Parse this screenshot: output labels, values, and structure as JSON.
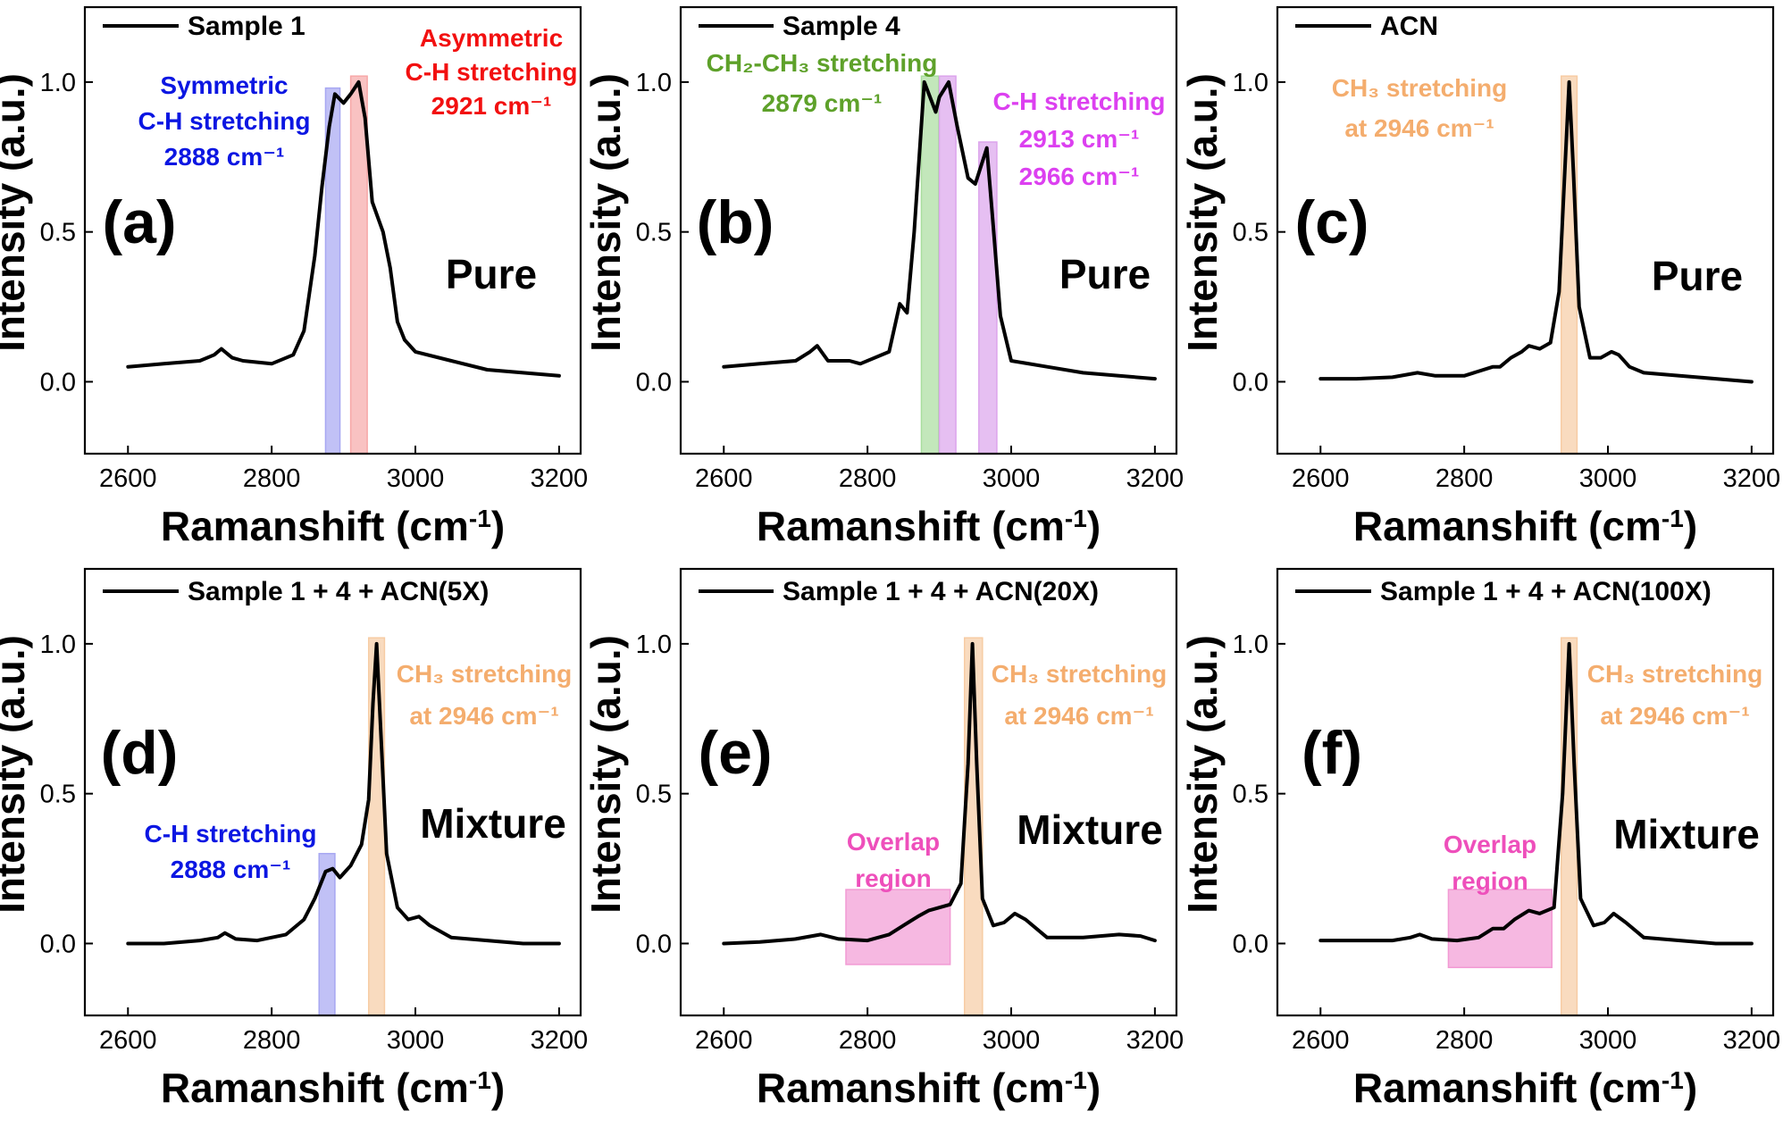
{
  "chart_data": [
    {
      "type": "line",
      "panel": "(a)",
      "legend": "Sample 1",
      "state_label": "Pure",
      "xlabel": "Ramanshift",
      "xunit": "cm",
      "xunit_exp": "-1",
      "ylabel": "Intensity (a.u.)",
      "xlim": [
        2540,
        3230
      ],
      "ylim": [
        -0.24,
        1.25
      ],
      "xticks": [
        "2600",
        "2800",
        "3000",
        "3200"
      ],
      "yticks": [
        "0.0",
        "0.5",
        "1.0"
      ],
      "x": [
        2600,
        2650,
        2700,
        2720,
        2730,
        2745,
        2760,
        2800,
        2830,
        2845,
        2860,
        2870,
        2880,
        2888,
        2900,
        2910,
        2921,
        2930,
        2940,
        2955,
        2965,
        2975,
        2985,
        3000,
        3050,
        3100,
        3150,
        3200
      ],
      "y": [
        0.05,
        0.06,
        0.07,
        0.09,
        0.11,
        0.08,
        0.07,
        0.06,
        0.09,
        0.17,
        0.42,
        0.65,
        0.85,
        0.96,
        0.93,
        0.96,
        1.0,
        0.88,
        0.6,
        0.5,
        0.38,
        0.2,
        0.14,
        0.1,
        0.07,
        0.04,
        0.03,
        0.02
      ],
      "bands": [
        {
          "x0": 2875,
          "x1": 2895,
          "y1": 0.98,
          "color": "#a7a7f2"
        },
        {
          "x0": 2910,
          "x1": 2933,
          "y1": 1.02,
          "color": "#f7a8a8"
        }
      ],
      "annotations": [
        {
          "lines": [
            "Symmetric",
            "C-H stretching",
            "2888 cm⁻¹"
          ],
          "color": "#0b16e2"
        },
        {
          "lines": [
            "Asymmetric",
            "C-H stretching",
            "2921 cm⁻¹"
          ],
          "color": "#f21010"
        }
      ]
    },
    {
      "type": "line",
      "panel": "(b)",
      "legend": "Sample 4",
      "state_label": "Pure",
      "xlabel": "Ramanshift",
      "xunit": "cm",
      "xunit_exp": "-1",
      "ylabel": "Intensity (a.u.)",
      "xlim": [
        2540,
        3230
      ],
      "ylim": [
        -0.24,
        1.25
      ],
      "xticks": [
        "2600",
        "2800",
        "3000",
        "3200"
      ],
      "yticks": [
        "0.0",
        "0.5",
        "1.0"
      ],
      "x": [
        2600,
        2650,
        2700,
        2720,
        2730,
        2745,
        2760,
        2775,
        2790,
        2830,
        2845,
        2855,
        2865,
        2879,
        2895,
        2900,
        2913,
        2925,
        2940,
        2950,
        2966,
        2975,
        2985,
        3000,
        3050,
        3100,
        3150,
        3200
      ],
      "y": [
        0.05,
        0.06,
        0.07,
        0.1,
        0.12,
        0.07,
        0.07,
        0.07,
        0.06,
        0.1,
        0.26,
        0.23,
        0.5,
        1.0,
        0.9,
        0.95,
        1.0,
        0.85,
        0.68,
        0.66,
        0.78,
        0.52,
        0.22,
        0.07,
        0.05,
        0.03,
        0.02,
        0.01
      ],
      "bands": [
        {
          "x0": 2875,
          "x1": 2899,
          "y1": 1.02,
          "color": "#a9dd9e"
        },
        {
          "x0": 2900,
          "x1": 2923,
          "y1": 1.02,
          "color": "#dca4ec"
        },
        {
          "x0": 2955,
          "x1": 2980,
          "y1": 0.8,
          "color": "#dca4ec"
        }
      ],
      "annotations": [
        {
          "lines": [
            "CH₂-CH₃ stretching",
            "2879 cm⁻¹"
          ],
          "color": "#5ea12a"
        },
        {
          "lines": [
            "C-H stretching",
            "2913 cm⁻¹",
            "2966 cm⁻¹"
          ],
          "color": "#dc40f0"
        }
      ]
    },
    {
      "type": "line",
      "panel": "(c)",
      "legend": "ACN",
      "state_label": "Pure",
      "xlabel": "Ramanshift",
      "xunit": "cm",
      "xunit_exp": "-1",
      "ylabel": "Intensity (a.u.)",
      "xlim": [
        2540,
        3230
      ],
      "ylim": [
        -0.24,
        1.25
      ],
      "xticks": [
        "2600",
        "2800",
        "3000",
        "3200"
      ],
      "yticks": [
        "0.0",
        "0.5",
        "1.0"
      ],
      "x": [
        2600,
        2650,
        2700,
        2735,
        2760,
        2800,
        2840,
        2850,
        2865,
        2880,
        2890,
        2905,
        2920,
        2932,
        2940,
        2946,
        2952,
        2960,
        2975,
        2990,
        3005,
        3015,
        3030,
        3050,
        3100,
        3150,
        3200
      ],
      "y": [
        0.01,
        0.01,
        0.015,
        0.03,
        0.02,
        0.02,
        0.05,
        0.05,
        0.08,
        0.1,
        0.12,
        0.11,
        0.13,
        0.3,
        0.7,
        1.0,
        0.7,
        0.25,
        0.08,
        0.08,
        0.1,
        0.09,
        0.05,
        0.03,
        0.02,
        0.01,
        0.0
      ],
      "bands": [
        {
          "x0": 2935,
          "x1": 2957,
          "y1": 1.02,
          "color": "#f7cca4"
        }
      ],
      "annotations": [
        {
          "lines": [
            "CH₃ stretching",
            "at 2946 cm⁻¹"
          ],
          "color": "#f4ad6e"
        }
      ]
    },
    {
      "type": "line",
      "panel": "(d)",
      "legend": "Sample 1 + 4 + ACN(5X)",
      "state_label": "Mixture",
      "xlabel": "Ramanshift",
      "xunit": "cm",
      "xunit_exp": "-1",
      "ylabel": "Intensity (a.u.)",
      "xlim": [
        2540,
        3230
      ],
      "ylim": [
        -0.24,
        1.25
      ],
      "xticks": [
        "2600",
        "2800",
        "3000",
        "3200"
      ],
      "yticks": [
        "0.0",
        "0.5",
        "1.0"
      ],
      "x": [
        2600,
        2650,
        2700,
        2725,
        2735,
        2750,
        2780,
        2820,
        2845,
        2860,
        2875,
        2885,
        2895,
        2910,
        2925,
        2935,
        2941,
        2946,
        2952,
        2960,
        2975,
        2990,
        3005,
        3020,
        3050,
        3100,
        3150,
        3200
      ],
      "y": [
        0.0,
        0.0,
        0.01,
        0.02,
        0.035,
        0.015,
        0.01,
        0.03,
        0.08,
        0.15,
        0.24,
        0.25,
        0.22,
        0.26,
        0.33,
        0.48,
        0.8,
        1.0,
        0.7,
        0.3,
        0.12,
        0.08,
        0.09,
        0.06,
        0.02,
        0.01,
        0.0,
        0.0
      ],
      "bands": [
        {
          "x0": 2866,
          "x1": 2888,
          "y1": 0.3,
          "color": "#a7a7f2"
        },
        {
          "x0": 2935,
          "x1": 2957,
          "y1": 1.02,
          "color": "#f7cca4"
        }
      ],
      "annotations": [
        {
          "lines": [
            "C-H stretching",
            "2888 cm⁻¹"
          ],
          "color": "#0b16e2"
        },
        {
          "lines": [
            "CH₃ stretching",
            "at 2946 cm⁻¹"
          ],
          "color": "#f4ad6e"
        }
      ]
    },
    {
      "type": "line",
      "panel": "(e)",
      "legend": "Sample 1 + 4 + ACN(20X)",
      "state_label": "Mixture",
      "xlabel": "Ramanshift",
      "xunit": "cm",
      "xunit_exp": "-1",
      "ylabel": "Intensity (a.u.)",
      "xlim": [
        2540,
        3230
      ],
      "ylim": [
        -0.24,
        1.25
      ],
      "xticks": [
        "2600",
        "2800",
        "3000",
        "3200"
      ],
      "yticks": [
        "0.0",
        "0.5",
        "1.0"
      ],
      "x": [
        2600,
        2650,
        2700,
        2735,
        2760,
        2800,
        2830,
        2850,
        2870,
        2885,
        2900,
        2915,
        2930,
        2940,
        2946,
        2952,
        2960,
        2975,
        2990,
        3005,
        3020,
        3050,
        3100,
        3150,
        3180,
        3200
      ],
      "y": [
        0.0,
        0.005,
        0.015,
        0.03,
        0.015,
        0.01,
        0.03,
        0.06,
        0.09,
        0.11,
        0.12,
        0.13,
        0.2,
        0.6,
        1.0,
        0.6,
        0.15,
        0.06,
        0.07,
        0.1,
        0.08,
        0.02,
        0.02,
        0.03,
        0.025,
        0.01
      ],
      "bands": [
        {
          "x0": 2935,
          "x1": 2960,
          "y1": 1.02,
          "color": "#f7cca4"
        },
        {
          "x0": 2770,
          "x1": 2915,
          "y0": -0.07,
          "y1": 0.18,
          "color": "#f29ad4"
        }
      ],
      "annotations": [
        {
          "lines": [
            "CH₃ stretching",
            "at 2946 cm⁻¹"
          ],
          "color": "#f4ad6e"
        },
        {
          "lines": [
            "Overlap",
            "region"
          ],
          "color": "#ee4fbb"
        }
      ]
    },
    {
      "type": "line",
      "panel": "(f)",
      "legend": "Sample 1 + 4 + ACN(100X)",
      "state_label": "Mixture",
      "xlabel": "Ramanshift",
      "xunit": "cm",
      "xunit_exp": "-1",
      "ylabel": "Intensity (a.u.)",
      "xlim": [
        2540,
        3230
      ],
      "ylim": [
        -0.24,
        1.25
      ],
      "xticks": [
        "2600",
        "2800",
        "3000",
        "3200"
      ],
      "yticks": [
        "0.0",
        "0.5",
        "1.0"
      ],
      "x": [
        2600,
        2650,
        2700,
        2725,
        2738,
        2755,
        2790,
        2820,
        2840,
        2855,
        2870,
        2890,
        2905,
        2925,
        2937,
        2946,
        2953,
        2962,
        2980,
        2995,
        3008,
        3025,
        3050,
        3100,
        3150,
        3200
      ],
      "y": [
        0.01,
        0.01,
        0.01,
        0.02,
        0.03,
        0.015,
        0.01,
        0.02,
        0.05,
        0.05,
        0.08,
        0.11,
        0.1,
        0.12,
        0.5,
        1.0,
        0.6,
        0.15,
        0.06,
        0.07,
        0.1,
        0.07,
        0.02,
        0.01,
        0.0,
        0.0
      ],
      "bands": [
        {
          "x0": 2935,
          "x1": 2957,
          "y1": 1.02,
          "color": "#f7cca4"
        },
        {
          "x0": 2778,
          "x1": 2922,
          "y0": -0.08,
          "y1": 0.18,
          "color": "#f29ad4"
        }
      ],
      "annotations": [
        {
          "lines": [
            "CH₃ stretching",
            "at 2946 cm⁻¹"
          ],
          "color": "#f4ad6e"
        },
        {
          "lines": [
            "Overlap",
            "region"
          ],
          "color": "#ee4fbb"
        }
      ]
    }
  ]
}
